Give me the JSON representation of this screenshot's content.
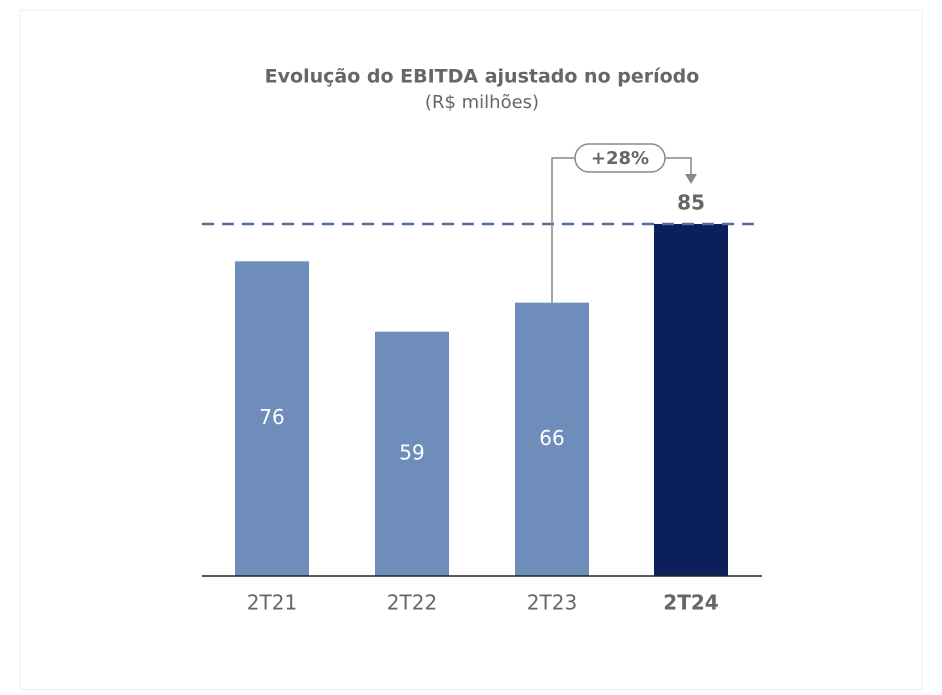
{
  "chart_data": {
    "type": "bar",
    "title": "Evolução do EBITDA ajustado no período",
    "subtitle": "(R$ milhões)",
    "categories": [
      "2T21",
      "2T22",
      "2T23",
      "2T24"
    ],
    "values": [
      76,
      59,
      66,
      85
    ],
    "colors": [
      "#6f8dbb",
      "#6f8dbb",
      "#6f8dbb",
      "#0b1f5b"
    ],
    "annotation": "+28%"
  }
}
